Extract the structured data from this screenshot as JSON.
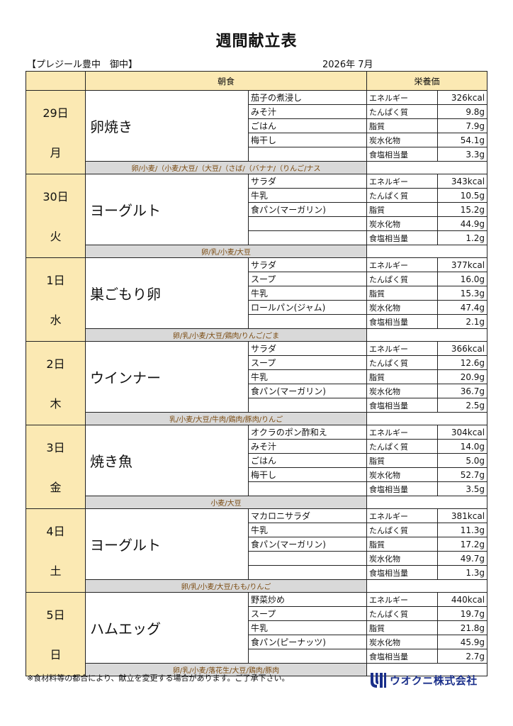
{
  "title": "週間献立表",
  "client": "【プレジール豊中　御中】",
  "month": "2026年 7月",
  "headers": {
    "breakfast": "朝食",
    "nutrition": "栄養価"
  },
  "nutrient_labels": [
    "エネルギー",
    "たんぱく質",
    "脂質",
    "炭水化物",
    "食塩相当量"
  ],
  "days": [
    {
      "date": "29日",
      "dow": "月",
      "main": "卵焼き",
      "sides": [
        "茄子の煮浸し",
        "みそ汁",
        "ごはん",
        "梅干し",
        ""
      ],
      "nutrition": [
        "326kcal",
        "9.8g",
        "7.9g",
        "54.1g",
        "3.3g"
      ],
      "allergens": "卵/小麦/（小麦/大豆/（大豆/（さば/（バナナ/（りんご/ナス"
    },
    {
      "date": "30日",
      "dow": "火",
      "main": "ヨーグルト",
      "sides": [
        "サラダ",
        "牛乳",
        "食パン(マーガリン)",
        "",
        ""
      ],
      "nutrition": [
        "343kcal",
        "10.5g",
        "15.2g",
        "44.9g",
        "1.2g"
      ],
      "allergens": "卵/乳/小麦/大豆"
    },
    {
      "date": "1日",
      "dow": "水",
      "main": "巣ごもり卵",
      "sides": [
        "サラダ",
        "スープ",
        "牛乳",
        "ロールパン(ジャム)",
        ""
      ],
      "nutrition": [
        "377kcal",
        "16.0g",
        "15.3g",
        "47.4g",
        "2.1g"
      ],
      "allergens": "卵/乳/小麦/大豆/鶏肉/りんご/ごま"
    },
    {
      "date": "2日",
      "dow": "木",
      "main": "ウインナー",
      "sides": [
        "サラダ",
        "スープ",
        "牛乳",
        "食パン(マーガリン)",
        ""
      ],
      "nutrition": [
        "366kcal",
        "12.6g",
        "20.9g",
        "36.7g",
        "2.5g"
      ],
      "allergens": "乳/小麦/大豆/牛肉/鶏肉/豚肉/りんご"
    },
    {
      "date": "3日",
      "dow": "金",
      "main": "焼き魚",
      "sides": [
        "オクラのポン酢和え",
        "みそ汁",
        "ごはん",
        "梅干し",
        ""
      ],
      "nutrition": [
        "304kcal",
        "14.0g",
        "5.0g",
        "52.7g",
        "3.5g"
      ],
      "allergens": "小麦/大豆"
    },
    {
      "date": "4日",
      "dow": "土",
      "main": "ヨーグルト",
      "sides": [
        "マカロニサラダ",
        "牛乳",
        "食パン(マーガリン)",
        "",
        ""
      ],
      "nutrition": [
        "381kcal",
        "11.3g",
        "17.2g",
        "49.7g",
        "1.3g"
      ],
      "allergens": "卵/乳/小麦/大豆/もも/りんご"
    },
    {
      "date": "5日",
      "dow": "日",
      "main": "ハムエッグ",
      "sides": [
        "野菜炒め",
        "スープ",
        "牛乳",
        "食パン(ピーナッツ)",
        ""
      ],
      "nutrition": [
        "440kcal",
        "19.7g",
        "21.8g",
        "45.9g",
        "2.7g"
      ],
      "allergens": "卵/乳/小麦/落花生/大豆/鶏肉/豚肉"
    }
  ],
  "footnote": "※食材料等の都合により、献立を変更する場合があります。ご了承下さい。",
  "logo": {
    "text": "ウオクニ株式会社",
    "color": "#1a2f8a"
  }
}
